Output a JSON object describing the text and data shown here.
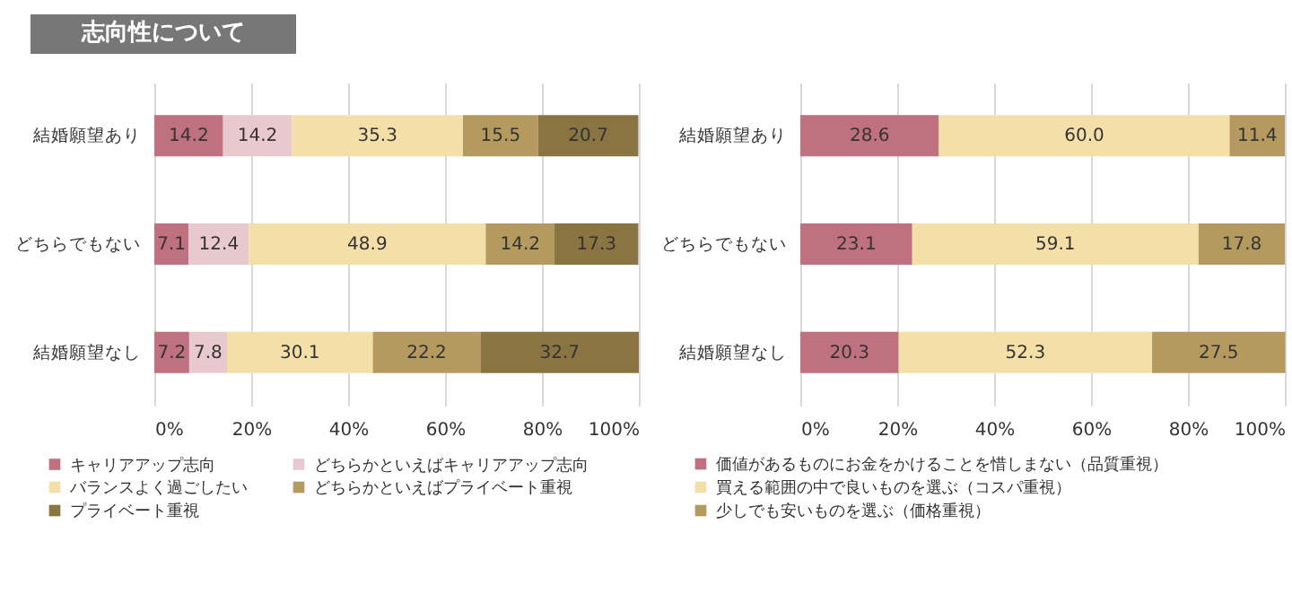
{
  "chart_data": [
    {
      "type": "bar",
      "title": "志向性について",
      "orientation": "horizontal",
      "stacked": true,
      "data_labels": true,
      "grid": "x",
      "legend": "bottom",
      "categories": [
        "結婚願望あり",
        "どちらでもない",
        "結婚願望なし"
      ],
      "xlim": [
        0,
        100
      ],
      "xticks": [
        {
          "value": 0,
          "label": "0%"
        },
        {
          "value": 20,
          "label": "20%"
        },
        {
          "value": 40,
          "label": "40%"
        },
        {
          "value": 60,
          "label": "60%"
        },
        {
          "value": 80,
          "label": "80%"
        },
        {
          "value": 100,
          "label": "100%"
        }
      ],
      "series": [
        {
          "name": "キャリアアップ志向",
          "color": "#c0717f",
          "values": [
            14.2,
            7.1,
            7.2
          ]
        },
        {
          "name": "どちらかといえばキャリアアップ志向",
          "color": "#e9c9d0",
          "values": [
            14.2,
            12.4,
            7.8
          ]
        },
        {
          "name": "バランスよく過ごしたい",
          "color": "#f5dfa9",
          "values": [
            35.3,
            48.9,
            30.1
          ]
        },
        {
          "name": "どちらかといえばプライベート重視",
          "color": "#b59a60",
          "values": [
            15.5,
            14.2,
            22.2
          ]
        },
        {
          "name": "プライベート重視",
          "color": "#8a7441",
          "values": [
            20.7,
            17.3,
            32.7
          ]
        }
      ]
    },
    {
      "type": "bar",
      "orientation": "horizontal",
      "stacked": true,
      "data_labels": true,
      "grid": "x",
      "legend": "bottom",
      "categories": [
        "結婚願望あり",
        "どちらでもない",
        "結婚願望なし"
      ],
      "xlim": [
        0,
        100
      ],
      "xticks": [
        {
          "value": 0,
          "label": "0%"
        },
        {
          "value": 20,
          "label": "20%"
        },
        {
          "value": 40,
          "label": "40%"
        },
        {
          "value": 60,
          "label": "60%"
        },
        {
          "value": 80,
          "label": "80%"
        },
        {
          "value": 100,
          "label": "100%"
        }
      ],
      "series": [
        {
          "name": "価値があるものにお金をかけることを惜しまない（品質重視）",
          "color": "#c0717f",
          "values": [
            28.6,
            23.1,
            20.3
          ]
        },
        {
          "name": "買える範囲の中で良いものを選ぶ（コスパ重視）",
          "color": "#f5dfa9",
          "values": [
            60.0,
            59.1,
            52.3
          ],
          "value_labels": [
            "60.0",
            "59.1",
            "52.3"
          ]
        },
        {
          "name": "少しでも安いものを選ぶ（価格重視）",
          "color": "#b59a60",
          "values": [
            11.4,
            17.8,
            27.5
          ]
        }
      ]
    }
  ]
}
